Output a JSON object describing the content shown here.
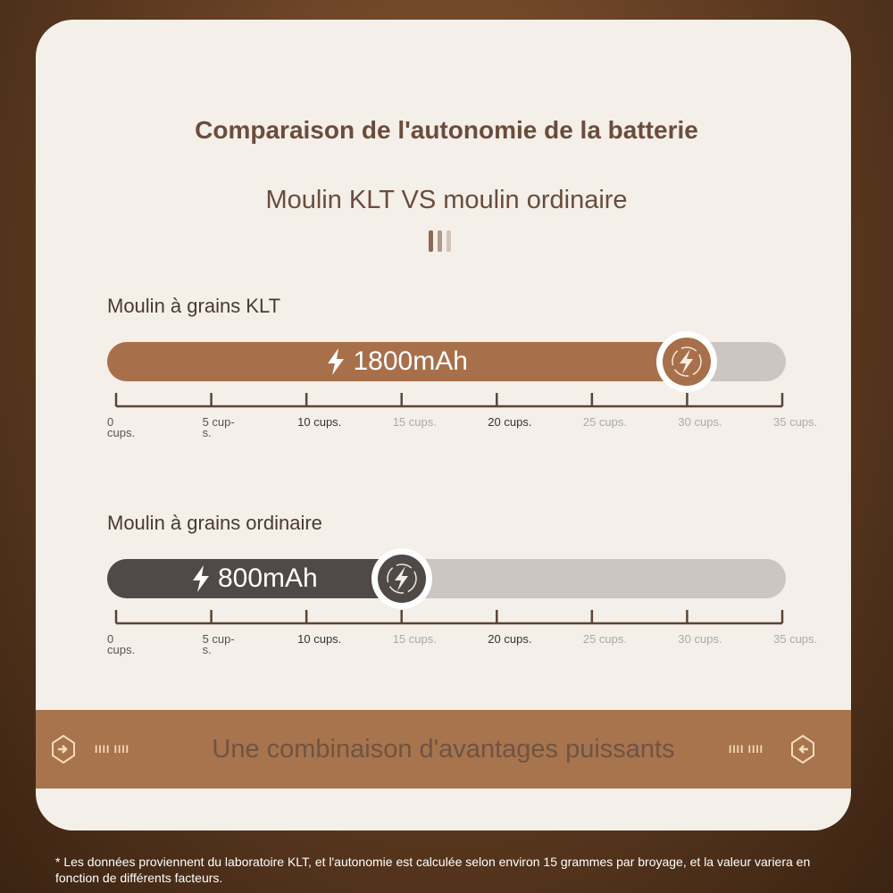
{
  "title": "Comparaison de l'autonomie de la batterie",
  "subtitle": "Moulin KLT VS moulin ordinaire",
  "chart_data": {
    "type": "bar",
    "orientation": "horizontal",
    "xlim": [
      0,
      35
    ],
    "tick_labels": [
      {
        "a": "0",
        "b": "cups."
      },
      {
        "a": "5 cup-",
        "b": "s."
      },
      {
        "a": "10 cups.",
        "b": ""
      },
      {
        "a": "15 cups.",
        "b": ""
      },
      {
        "a": "20 cups.",
        "b": ""
      },
      {
        "a": "25 cups.",
        "b": ""
      },
      {
        "a": "30 cups.",
        "b": ""
      },
      {
        "a": "35 cups.",
        "b": ""
      }
    ],
    "tick_values": [
      0,
      5,
      10,
      15,
      20,
      25,
      30,
      35
    ],
    "series": [
      {
        "name": "Moulin à grains KLT",
        "label": "1800mAh",
        "value": 30,
        "color": "#a8704a"
      },
      {
        "name": "Moulin à grains ordinaire",
        "label": "800mAh",
        "value": 15,
        "color": "#4f4a47"
      }
    ]
  },
  "banner": {
    "text": "Une combinaison d'avantages puissants",
    "color": "#a8744d"
  },
  "footnote": "* Les données proviennent du laboratoire KLT, et l'autonomie est calculée selon environ 15 grammes par broyage, et la valeur variera en fonction de différents facteurs."
}
